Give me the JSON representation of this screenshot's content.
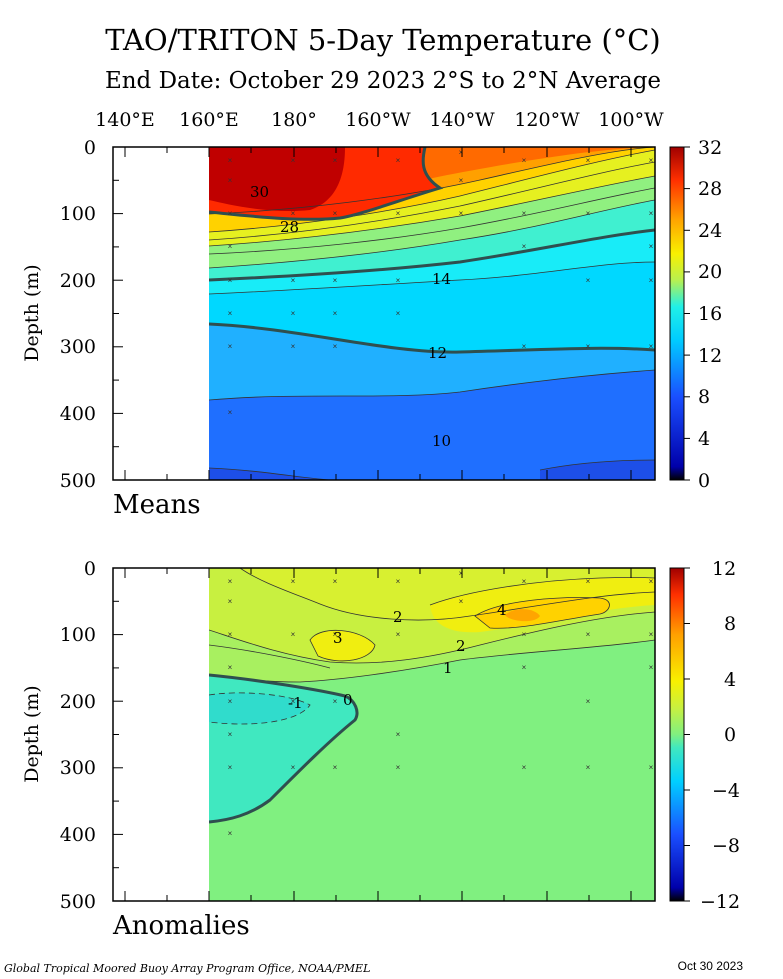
{
  "header": {
    "title": "TAO/TRITON 5-Day Temperature (°C)",
    "subtitle": "End Date: October 29 2023  2°S to 2°N Average"
  },
  "footer": {
    "credit": "Global Tropical Moored Buoy Array Program Office, NOAA/PMEL",
    "date": "Oct 30 2023"
  },
  "colors": {
    "contour_line": "#3a3a3a",
    "bold_contour": "#2f4f4f"
  },
  "chart_data": [
    {
      "type": "heatmap",
      "name": "Means",
      "panel_label": "Means",
      "ylabel": "Depth (m)",
      "x_ticks": [
        "140°E",
        "160°E",
        "180°",
        "160°W",
        "140°W",
        "120°W",
        "100°W"
      ],
      "y_ticks": [
        "0",
        "100",
        "200",
        "300",
        "400",
        "500"
      ],
      "ylim": [
        500,
        0
      ],
      "colorbar": {
        "ticks": [
          "32",
          "28",
          "24",
          "20",
          "16",
          "12",
          "8",
          "4",
          "0"
        ],
        "range": [
          0,
          32
        ]
      },
      "contour_labels": [
        "30",
        "28",
        "14",
        "12",
        "10"
      ],
      "data_coverage": "160°E to 95°W"
    },
    {
      "type": "heatmap",
      "name": "Anomalies",
      "panel_label": "Anomalies",
      "ylabel": "Depth (m)",
      "y_ticks": [
        "0",
        "100",
        "200",
        "300",
        "400",
        "500"
      ],
      "ylim": [
        500,
        0
      ],
      "colorbar": {
        "ticks": [
          "12",
          "8",
          "4",
          "0",
          "−4",
          "−8",
          "−12"
        ],
        "range": [
          -12,
          12
        ]
      },
      "contour_labels": [
        "4",
        "3",
        "2",
        "2",
        "1",
        "0",
        "-1"
      ],
      "data_coverage": "160°E to 95°W"
    }
  ]
}
